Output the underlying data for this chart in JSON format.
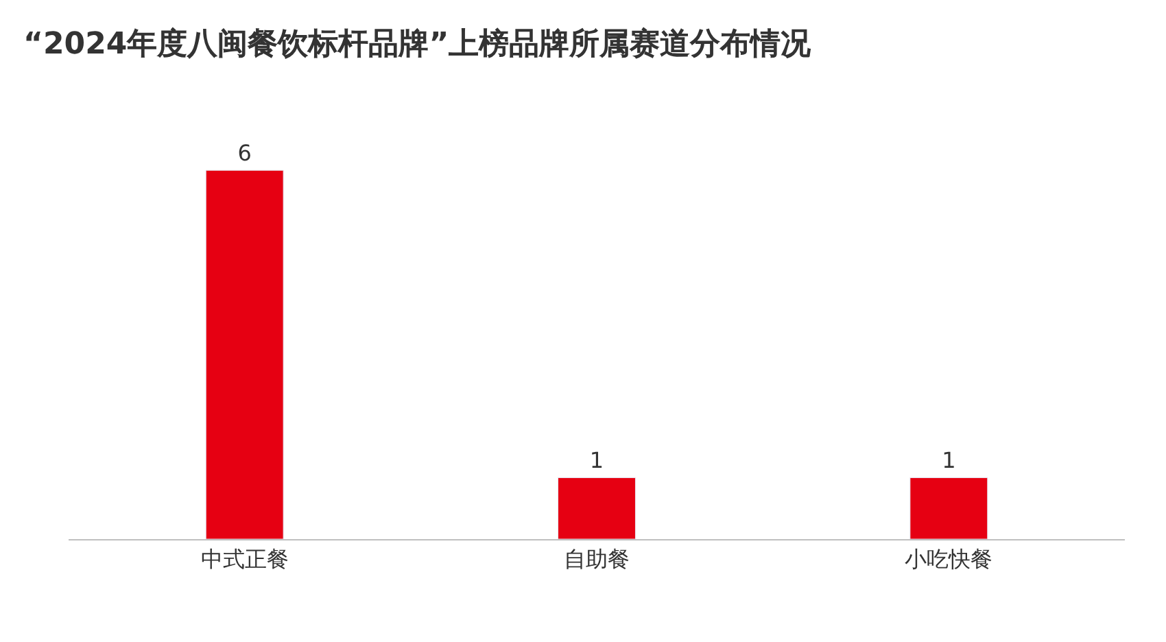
{
  "chart_data": {
    "type": "bar",
    "title": "“2024年度八闽餐饮标杆品牌”上榜品牌所属赛道分布情况",
    "categories": [
      "中式正餐",
      "自助餐",
      "小吃快餐"
    ],
    "values": [
      6,
      1,
      1
    ],
    "color": "#e60012",
    "data_labels": true
  }
}
